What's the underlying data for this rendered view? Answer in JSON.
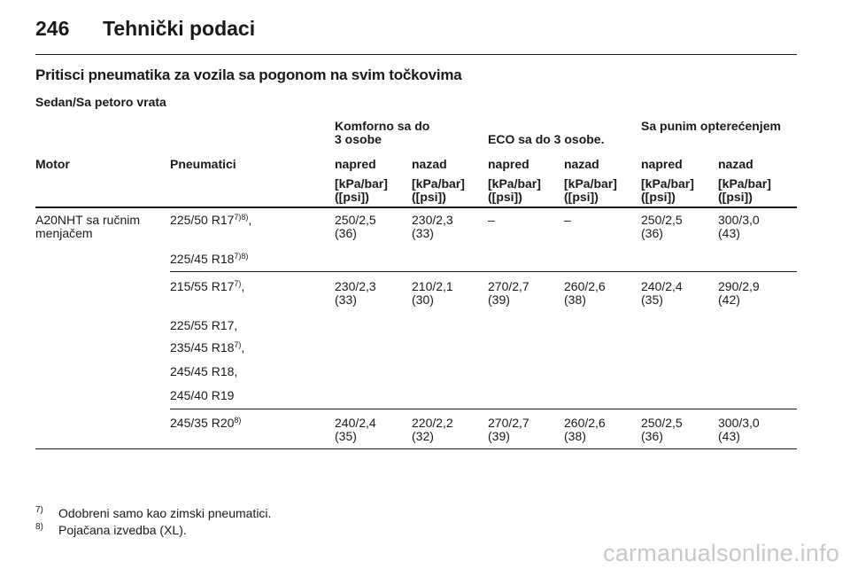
{
  "header": {
    "page_number": "246",
    "title": "Tehnički podaci"
  },
  "section_title": "Pritisci pneumatika za vozila sa pogonom na svim točkovima",
  "subsection_title": "Sedan/Sa petoro vrata",
  "table": {
    "group_headers": {
      "komforno": [
        "Komforno sa do",
        "3 osobe"
      ],
      "eco": "ECO sa do 3 osobe.",
      "full_load": "Sa punim opterećenjem"
    },
    "column_headers": {
      "motor": "Motor",
      "tyres": "Pneumatici",
      "cols": [
        "napred",
        "nazad",
        "napred",
        "nazad",
        "napred",
        "nazad"
      ]
    },
    "unit": [
      "[kPa/bar]",
      "([psi])"
    ],
    "motor": [
      "A20NHT sa ručnim",
      "menjačem"
    ],
    "groups": [
      {
        "tyres": [
          {
            "size": "225/50 R17",
            "note": "7)8)",
            "suffix": ","
          },
          {
            "size": "225/45 R18",
            "note": "7)8)",
            "suffix": ""
          }
        ],
        "values": [
          [
            "250/2,5",
            "(36)"
          ],
          [
            "230/2,3",
            "(33)"
          ],
          [
            "–",
            ""
          ],
          [
            "–",
            ""
          ],
          [
            "250/2,5",
            "(36)"
          ],
          [
            "300/3,0",
            "(43)"
          ]
        ]
      },
      {
        "tyres": [
          {
            "size": "215/55 R17",
            "note": "7)",
            "suffix": ","
          },
          {
            "size": "225/55 R17,",
            "note": "",
            "suffix": ""
          },
          {
            "size": "235/45 R18",
            "note": "7)",
            "suffix": ","
          },
          {
            "size": "245/45 R18,",
            "note": "",
            "suffix": ""
          },
          {
            "size": "245/40 R19",
            "note": "",
            "suffix": ""
          }
        ],
        "values": [
          [
            "230/2,3",
            "(33)"
          ],
          [
            "210/2,1",
            "(30)"
          ],
          [
            "270/2,7",
            "(39)"
          ],
          [
            "260/2,6",
            "(38)"
          ],
          [
            "240/2,4",
            "(35)"
          ],
          [
            "290/2,9",
            "(42)"
          ]
        ]
      },
      {
        "tyres": [
          {
            "size": "245/35 R20",
            "note": "8)",
            "suffix": ""
          }
        ],
        "values": [
          [
            "240/2,4",
            "(35)"
          ],
          [
            "220/2,2",
            "(32)"
          ],
          [
            "270/2,7",
            "(39)"
          ],
          [
            "260/2,6",
            "(38)"
          ],
          [
            "250/2,5",
            "(36)"
          ],
          [
            "300/3,0",
            "(43)"
          ]
        ]
      }
    ]
  },
  "footnotes": [
    {
      "mark": "7)",
      "text": "Odobreni samo kao zimski pneumatici."
    },
    {
      "mark": "8)",
      "text": "Pojačana izvedba (XL)."
    }
  ],
  "watermark": "carmanualsonline.info"
}
